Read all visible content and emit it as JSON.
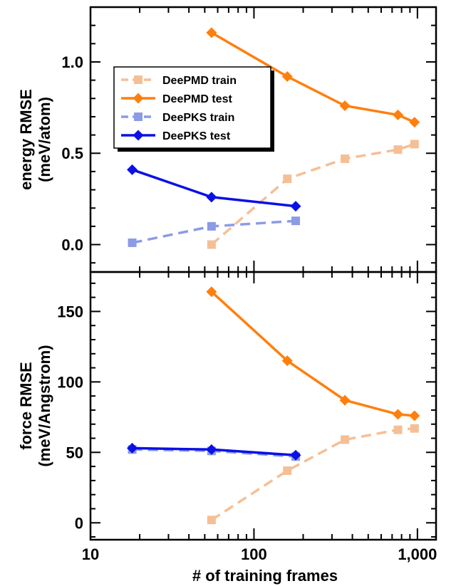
{
  "chart_data": {
    "type": "line",
    "x_scale": "log",
    "xlabel": "# of training frames",
    "xlim": [
      10,
      1300
    ],
    "x_ticks": [
      {
        "value": 10,
        "label": "10"
      },
      {
        "value": 100,
        "label": "100"
      },
      {
        "value": 1000,
        "label": "1,000"
      }
    ],
    "series_styles": {
      "DeePMD train": {
        "color": "#f5bf96",
        "marker": "square",
        "dash": true
      },
      "DeePMD test": {
        "color": "#ff7f0e",
        "marker": "diamond",
        "dash": false
      },
      "DeePKS train": {
        "color": "#8c9be6",
        "marker": "square",
        "dash": true
      },
      "DeePKS test": {
        "color": "#0a10e6",
        "marker": "diamond",
        "dash": false
      }
    },
    "panels": [
      {
        "id": "energy",
        "ylabel_line1": "energy RMSE",
        "ylabel_line2": "(meV/atom)",
        "ylim": [
          -0.15,
          1.3
        ],
        "y_ticks": [
          {
            "value": 0.0,
            "label": "0.0"
          },
          {
            "value": 0.5,
            "label": "0.5"
          },
          {
            "value": 1.0,
            "label": "1.0"
          }
        ],
        "legend_position": "upper-left",
        "series": [
          {
            "name": "DeePMD train",
            "x": [
              55,
              160,
              360,
              760,
              960
            ],
            "y": [
              0.0,
              0.36,
              0.47,
              0.52,
              0.55
            ]
          },
          {
            "name": "DeePMD test",
            "x": [
              55,
              160,
              360,
              760,
              960
            ],
            "y": [
              1.16,
              0.92,
              0.76,
              0.71,
              0.67
            ]
          },
          {
            "name": "DeePKS train",
            "x": [
              18,
              55,
              180
            ],
            "y": [
              0.01,
              0.1,
              0.13
            ]
          },
          {
            "name": "DeePKS test",
            "x": [
              18,
              55,
              180
            ],
            "y": [
              0.41,
              0.26,
              0.21
            ]
          }
        ]
      },
      {
        "id": "force",
        "ylabel_line1": "force RMSE",
        "ylabel_line2": "(meV/Angstrom)",
        "ylim": [
          -12,
          178
        ],
        "y_ticks": [
          {
            "value": 0,
            "label": "0"
          },
          {
            "value": 50,
            "label": "50"
          },
          {
            "value": 100,
            "label": "100"
          },
          {
            "value": 150,
            "label": "150"
          }
        ],
        "series": [
          {
            "name": "DeePMD train",
            "x": [
              55,
              160,
              360,
              760,
              960
            ],
            "y": [
              2,
              37,
              59,
              66,
              67
            ]
          },
          {
            "name": "DeePMD test",
            "x": [
              55,
              160,
              360,
              760,
              960
            ],
            "y": [
              164,
              115,
              87,
              77,
              76
            ]
          },
          {
            "name": "DeePKS train",
            "x": [
              18,
              55,
              180
            ],
            "y": [
              52,
              51,
              47
            ]
          },
          {
            "name": "DeePKS test",
            "x": [
              18,
              55,
              180
            ],
            "y": [
              53,
              52,
              48
            ]
          }
        ]
      }
    ]
  }
}
